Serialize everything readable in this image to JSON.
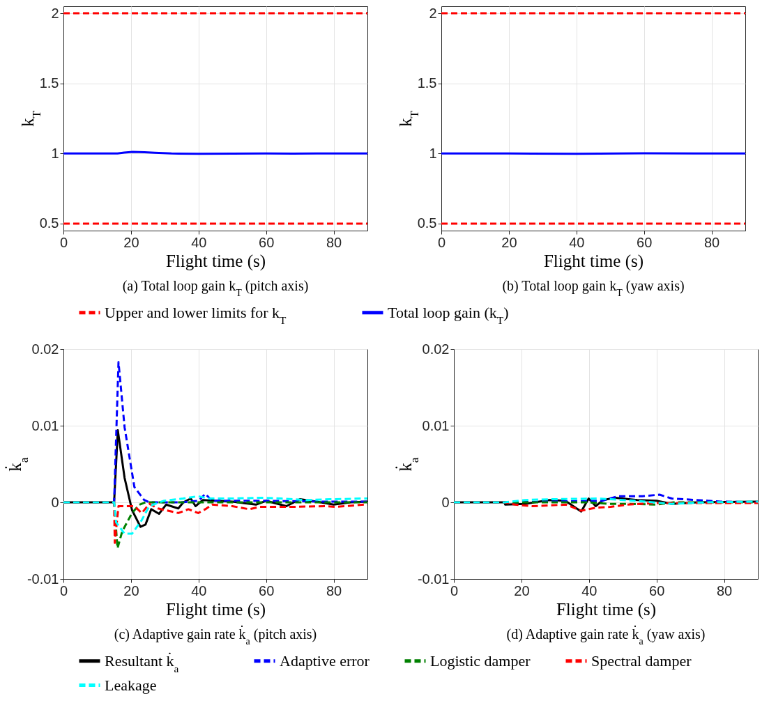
{
  "chart_data": [
    {
      "type": "line",
      "title": "(a) Total loop gain k$_{T}$ (pitch axis)",
      "xlabel": "Flight time (s)",
      "ylabel": "k$_{T}$",
      "xlim": [
        0,
        90
      ],
      "xticks": [
        0,
        20,
        40,
        60,
        80
      ],
      "ylim": [
        0.45,
        2.05
      ],
      "yticks": [
        0.5,
        1,
        1.5,
        2
      ],
      "grid": true,
      "legend": "bottom",
      "series": [
        {
          "name": "Upper and lower limits for k$_{T}$",
          "color": "#ff0000",
          "line_style": "dashed",
          "x": [
            0,
            90
          ],
          "values": [
            2,
            2
          ]
        },
        {
          "color": "#ff0000",
          "line_style": "dashed",
          "x": [
            0,
            90
          ],
          "values": [
            0.5,
            0.5
          ]
        },
        {
          "name": "Total loop gain (k$_{T}$)",
          "color": "#0000ff",
          "line_style": "solid",
          "x": [
            0,
            16,
            18,
            20.5,
            24,
            27,
            32,
            40,
            50,
            60,
            68,
            75,
            90
          ],
          "values": [
            1,
            1,
            1.006,
            1.012,
            1.009,
            1.005,
            1,
            0.998,
            0.999,
            1,
            0.999,
            1,
            1
          ]
        }
      ]
    },
    {
      "type": "line",
      "title": "(b) Total loop gain k$_{T}$ (yaw axis)",
      "xlabel": "Flight time (s)",
      "ylabel": "k$_{T}$",
      "xlim": [
        0,
        90
      ],
      "xticks": [
        0,
        20,
        40,
        60,
        80
      ],
      "ylim": [
        0.45,
        2.05
      ],
      "yticks": [
        0.5,
        1,
        1.5,
        2
      ],
      "grid": true,
      "series": [
        {
          "color": "#ff0000",
          "line_style": "dashed",
          "x": [
            0,
            90
          ],
          "values": [
            2,
            2
          ]
        },
        {
          "color": "#ff0000",
          "line_style": "dashed",
          "x": [
            0,
            90
          ],
          "values": [
            0.5,
            0.5
          ]
        },
        {
          "color": "#0000ff",
          "line_style": "solid",
          "x": [
            0,
            20,
            40,
            60,
            75,
            90
          ],
          "values": [
            1,
            1,
            0.998,
            1.002,
            1,
            1
          ]
        }
      ]
    },
    {
      "type": "line",
      "title": "(c) Adaptive gain rate k̇$_{a}$ (pitch axis)",
      "xlabel": "Flight time (s)",
      "ylabel": "k̇$_{a}$",
      "xlim": [
        0,
        90
      ],
      "xticks": [
        0,
        20,
        40,
        60,
        80
      ],
      "ylim": [
        -0.01,
        0.02
      ],
      "yticks": [
        -0.01,
        0,
        0.01,
        0.02
      ],
      "grid": true,
      "legend": "bottom",
      "series": [
        {
          "name": "Resultant k̇$_{a}$",
          "color": "#000000",
          "line_style": "solid",
          "x": [
            0,
            15,
            16.1,
            18.1,
            20.3,
            22.8,
            24.3,
            26,
            28.3,
            30.4,
            34,
            35.5,
            37.7,
            39.1,
            41.3,
            45,
            50,
            57,
            60,
            66,
            70,
            75,
            80,
            85,
            90
          ],
          "values": [
            0,
            0,
            0.0094,
            0.0032,
            -0.001,
            -0.0032,
            -0.0029,
            -0.0009,
            -0.0015,
            -0.0003,
            -0.0008,
            0,
            0.0005,
            -0.0005,
            0.0003,
            0.0002,
            0.0001,
            -0.0003,
            0.0002,
            -0.0005,
            0.0004,
            0.0001,
            -0.0003,
            0,
            0.0001
          ]
        },
        {
          "name": "Adaptive error",
          "color": "#0000ff",
          "line_style": "dashed",
          "x": [
            0,
            15,
            16.3,
            18.1,
            21,
            23.9,
            25.4,
            35,
            40,
            42,
            44,
            60,
            75,
            90
          ],
          "values": [
            0,
            0,
            0.0183,
            0.0098,
            0.002,
            0.0003,
            0,
            0,
            0.0002,
            0.0011,
            0.0002,
            0.0002,
            0.0001,
            0.0001
          ]
        },
        {
          "name": "Logistic damper",
          "color": "#008000",
          "line_style": "dashed",
          "x": [
            0,
            15,
            16,
            17.4,
            20.3,
            22.5,
            24.3,
            50,
            90
          ],
          "values": [
            0,
            0,
            -0.006,
            -0.0038,
            -0.0014,
            -0.0003,
            0,
            0,
            0
          ]
        },
        {
          "name": "Spectral damper",
          "color": "#ff0000",
          "line_style": "dashed",
          "x": [
            0,
            15,
            15.2,
            16.3,
            21,
            23.2,
            25.4,
            28,
            34,
            37,
            39.9,
            42,
            44,
            50,
            55,
            58,
            66.7,
            77.5,
            80.4,
            89,
            90
          ],
          "values": [
            0,
            0,
            -0.0053,
            -0.0005,
            -0.0005,
            -0.0014,
            -0.0002,
            -0.0008,
            -0.0014,
            -0.0009,
            -0.0014,
            -0.0009,
            -0.0003,
            -0.0005,
            -0.0009,
            -0.0006,
            -0.0006,
            -0.0005,
            -0.0006,
            -0.0003,
            -0.0003
          ]
        },
        {
          "name": "Leakage",
          "color": "#00ffff",
          "line_style": "dashed",
          "x": [
            0,
            15,
            15.6,
            18.1,
            20.3,
            23.2,
            25.4,
            29.7,
            35.5,
            39.9,
            42.8,
            50,
            58.7,
            64.5,
            71.7,
            79,
            89,
            90
          ],
          "values": [
            0,
            0,
            -0.0026,
            -0.0041,
            -0.0041,
            -0.0023,
            -0.0005,
            0.0002,
            0.0005,
            0.0008,
            0.0005,
            0.0005,
            0.0006,
            0.0005,
            0.0003,
            0.0004,
            0.0005,
            0.0005
          ]
        }
      ]
    },
    {
      "type": "line",
      "title": "(d) Adaptive gain rate k̇$_{a}$ (yaw axis)",
      "xlabel": "Flight time (s)",
      "ylabel": "k̇$_{a}$",
      "xlim": [
        0,
        90
      ],
      "xticks": [
        0,
        20,
        40,
        60,
        80
      ],
      "ylim": [
        -0.01,
        0.02
      ],
      "yticks": [
        -0.01,
        0,
        0.01,
        0.02
      ],
      "grid": true,
      "series": [
        {
          "color": "#000000",
          "line_style": "solid",
          "x": [
            0,
            15,
            15.2,
            21,
            28.3,
            33,
            37.7,
            39.9,
            42,
            44.2,
            47.8,
            54.3,
            60,
            64.5,
            72,
            90
          ],
          "values": [
            0,
            0,
            -0.0003,
            -0.0002,
            0.0003,
            0.0002,
            -0.0012,
            0.0005,
            -0.0005,
            0.0003,
            0.0006,
            0.0003,
            0.0002,
            -0.0002,
            0,
            0.0001
          ]
        },
        {
          "color": "#0000ff",
          "line_style": "dashed",
          "x": [
            0,
            15,
            44,
            48.6,
            55.8,
            60.9,
            64.5,
            71.7,
            79,
            90
          ],
          "values": [
            0,
            0,
            0.0002,
            0.0008,
            0.0008,
            0.001,
            0.0005,
            0.0003,
            0.0001,
            0
          ]
        },
        {
          "color": "#008000",
          "line_style": "dashed",
          "x": [
            0,
            15,
            40,
            45.7,
            52,
            60,
            65,
            90
          ],
          "values": [
            0,
            0,
            0,
            -0.0002,
            -0.0002,
            -0.0003,
            0,
            0
          ]
        },
        {
          "color": "#ff0000",
          "line_style": "dashed",
          "x": [
            0,
            15,
            18.1,
            23.2,
            33.3,
            37.7,
            42,
            46.4,
            51.4,
            59.4,
            90
          ],
          "values": [
            0,
            0,
            -0.0003,
            -0.0005,
            -0.0003,
            -0.0011,
            -0.0007,
            -0.0006,
            -0.0003,
            -0.0001,
            -0.0001
          ]
        },
        {
          "color": "#00ffff",
          "line_style": "dashed",
          "x": [
            0,
            15,
            21,
            28,
            42.8,
            53.6,
            64.5,
            75,
            90
          ],
          "values": [
            0,
            0,
            0.0003,
            0.0004,
            0.0005,
            0.0002,
            -0.0002,
            0,
            0.0001
          ]
        }
      ]
    }
  ]
}
